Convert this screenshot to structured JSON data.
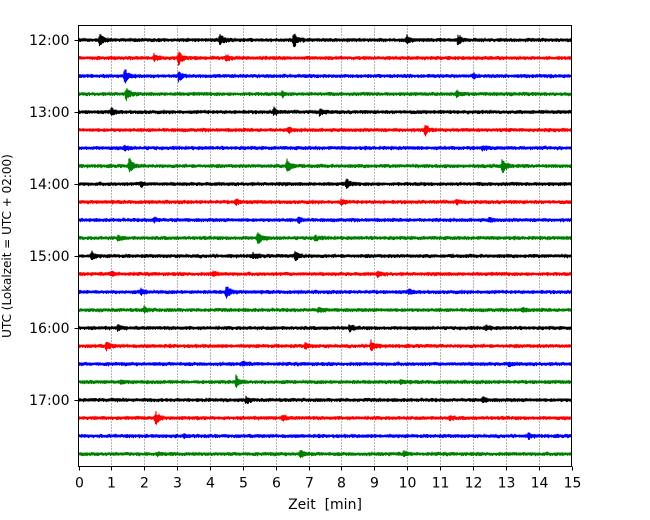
{
  "chart_data": {
    "type": "line",
    "title": "",
    "xlabel": "Zeit  [min]",
    "ylabel": "UTC (Lokalzeit = UTC + 02:00)",
    "xlim": [
      0,
      15
    ],
    "x_ticks": [
      "0",
      "1",
      "2",
      "3",
      "4",
      "5",
      "6",
      "7",
      "8",
      "9",
      "10",
      "11",
      "12",
      "13",
      "14",
      "15"
    ],
    "y_ticks": [
      "12:00",
      "13:00",
      "14:00",
      "15:00",
      "16:00",
      "17:00"
    ],
    "grid": "vertical-dotted",
    "trace_colors": [
      "#000000",
      "#ff0000",
      "#0000ff",
      "#008000"
    ],
    "series": [
      {
        "start": "12:00",
        "color": "#000000",
        "events": [
          [
            0.65,
            1.0
          ],
          [
            4.3,
            1.0
          ],
          [
            6.55,
            1.4
          ],
          [
            10.0,
            0.7
          ],
          [
            11.55,
            0.9
          ]
        ]
      },
      {
        "start": "12:15",
        "color": "#ff0000",
        "events": [
          [
            2.3,
            0.5
          ],
          [
            3.05,
            1.1
          ],
          [
            4.5,
            0.4
          ]
        ]
      },
      {
        "start": "12:30",
        "color": "#0000ff",
        "events": [
          [
            1.4,
            1.3
          ],
          [
            3.05,
            0.9
          ],
          [
            12.0,
            0.4
          ]
        ]
      },
      {
        "start": "12:45",
        "color": "#008000",
        "events": [
          [
            1.45,
            1.0
          ],
          [
            6.2,
            0.4
          ],
          [
            11.5,
            0.4
          ]
        ]
      },
      {
        "start": "13:00",
        "color": "#000000",
        "events": [
          [
            1.0,
            0.6
          ],
          [
            5.95,
            0.6
          ],
          [
            7.35,
            0.6
          ]
        ]
      },
      {
        "start": "13:15",
        "color": "#ff0000",
        "events": [
          [
            10.55,
            0.9
          ],
          [
            6.4,
            0.4
          ]
        ]
      },
      {
        "start": "13:30",
        "color": "#0000ff",
        "events": [
          [
            1.4,
            0.4
          ],
          [
            12.3,
            0.4
          ]
        ]
      },
      {
        "start": "13:45",
        "color": "#008000",
        "events": [
          [
            1.55,
            1.2
          ],
          [
            6.35,
            1.5
          ],
          [
            12.9,
            1.3
          ]
        ]
      },
      {
        "start": "14:00",
        "color": "#000000",
        "events": [
          [
            8.15,
            0.8
          ],
          [
            1.9,
            0.4
          ]
        ]
      },
      {
        "start": "14:15",
        "color": "#ff0000",
        "events": [
          [
            4.8,
            0.4
          ],
          [
            8.0,
            0.4
          ],
          [
            11.5,
            0.3
          ]
        ]
      },
      {
        "start": "14:30",
        "color": "#0000ff",
        "events": [
          [
            2.3,
            0.4
          ],
          [
            6.7,
            0.4
          ],
          [
            12.5,
            0.3
          ]
        ]
      },
      {
        "start": "14:45",
        "color": "#008000",
        "events": [
          [
            5.45,
            1.2
          ],
          [
            1.2,
            0.4
          ],
          [
            7.2,
            0.4
          ]
        ]
      },
      {
        "start": "15:00",
        "color": "#000000",
        "events": [
          [
            0.4,
            0.6
          ],
          [
            6.6,
            0.9
          ],
          [
            5.3,
            0.5
          ]
        ]
      },
      {
        "start": "15:15",
        "color": "#ff0000",
        "events": [
          [
            1.0,
            0.4
          ],
          [
            4.1,
            0.4
          ],
          [
            9.1,
            0.4
          ]
        ]
      },
      {
        "start": "15:30",
        "color": "#0000ff",
        "events": [
          [
            4.5,
            1.2
          ],
          [
            1.9,
            0.5
          ],
          [
            10.05,
            0.4
          ]
        ]
      },
      {
        "start": "15:45",
        "color": "#008000",
        "events": [
          [
            2.0,
            0.4
          ],
          [
            7.3,
            0.4
          ],
          [
            13.5,
            0.3
          ]
        ]
      },
      {
        "start": "16:00",
        "color": "#000000",
        "events": [
          [
            8.25,
            0.5
          ],
          [
            1.2,
            0.4
          ],
          [
            12.4,
            0.4
          ]
        ]
      },
      {
        "start": "16:15",
        "color": "#ff0000",
        "events": [
          [
            0.85,
            0.7
          ],
          [
            8.9,
            1.0
          ],
          [
            6.9,
            0.4
          ]
        ]
      },
      {
        "start": "16:30",
        "color": "#0000ff",
        "events": [
          [
            5.0,
            0.4
          ],
          [
            13.1,
            0.3
          ]
        ]
      },
      {
        "start": "16:45",
        "color": "#008000",
        "events": [
          [
            4.8,
            1.0
          ],
          [
            1.3,
            0.4
          ],
          [
            9.8,
            0.3
          ]
        ]
      },
      {
        "start": "17:00",
        "color": "#000000",
        "events": [
          [
            5.1,
            0.5
          ],
          [
            12.3,
            0.4
          ]
        ]
      },
      {
        "start": "17:15",
        "color": "#ff0000",
        "events": [
          [
            2.35,
            1.0
          ],
          [
            6.2,
            0.5
          ],
          [
            11.3,
            0.3
          ]
        ]
      },
      {
        "start": "17:30",
        "color": "#0000ff",
        "events": [
          [
            13.7,
            0.4
          ],
          [
            3.2,
            0.3
          ]
        ]
      },
      {
        "start": "17:45",
        "color": "#008000",
        "events": [
          [
            6.75,
            0.6
          ],
          [
            9.9,
            0.4
          ],
          [
            2.4,
            0.3
          ]
        ]
      }
    ]
  }
}
